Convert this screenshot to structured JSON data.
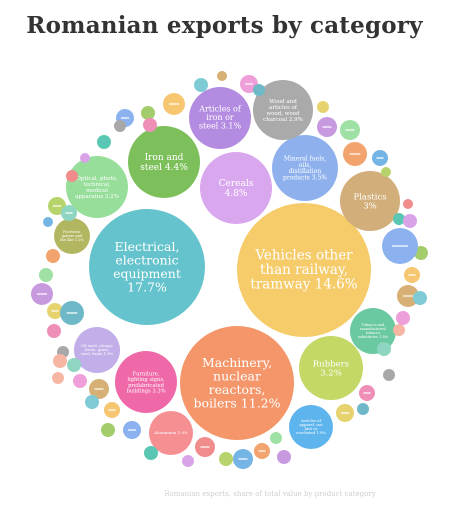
{
  "chart_data": {
    "type": "bubble",
    "title": "Romanian exports by category",
    "series": [
      {
        "name": "Electrical, electronic equipment",
        "value": 17.7,
        "label": "Electrical, electronic equipment 17.7%",
        "color": "#64c3cc"
      },
      {
        "name": "Vehicles other than railway, tramway",
        "value": 14.6,
        "label": "Vehicles other than railway, tramway 14.6%",
        "color": "#f6cc6a"
      },
      {
        "name": "Machinery, nuclear reactors, boilers",
        "value": 11.2,
        "label": "Machinery, nuclear reactors, boilers 11.2%",
        "color": "#f4966a"
      },
      {
        "name": "Cereals",
        "value": 4.8,
        "label": "Cereals 4.8%",
        "color": "#d9a7ee"
      },
      {
        "name": "Iron and steel",
        "value": 4.4,
        "label": "Iron and steel 4.4%",
        "color": "#7dc05b"
      },
      {
        "name": "Mineral fuels, oils, distillation products",
        "value": 3.5,
        "label": "Mineral fuels, oils, distillation products 3.5%",
        "color": "#8eb1ee"
      },
      {
        "name": "Optical, photo, technical, medical apparatus",
        "value": 3.2,
        "label": "Optical, photo, technical, medical apparatus 3.2%",
        "color": "#96de9a"
      },
      {
        "name": "Rubbers",
        "value": 3.2,
        "label": "Rubbers 3.2%",
        "color": "#c3d865"
      },
      {
        "name": "Articles of iron or steel",
        "value": 3.1,
        "label": "Articles of iron or steel 3.1%",
        "color": "#b38be0"
      },
      {
        "name": "Plastics",
        "value": 3.0,
        "label": "Plastics 3%",
        "color": "#d2ae7a"
      },
      {
        "name": "Wood and articles of wood, wood charcoal",
        "value": 2.9,
        "label": "Wood and articles of wood, wood charcoal 2.9%",
        "color": "#aaaaaa"
      },
      {
        "name": "Furniture, lighting signs, prefabricated buildings",
        "value": 3.3,
        "label": "Furniture, lighting signs, prefabricated buildings 3.3%",
        "color": "#ef69a8"
      },
      {
        "name": "Articles of apparel, not knit or crocheted",
        "value": 1.9,
        "label": "Articles of apparel, not knit or crocheted 1.9%",
        "color": "#5eb4ec"
      },
      {
        "name": "Tobacco and manufactured tobacco substitutes",
        "value": 1.8,
        "label": "Tobacco and manufactured tobacco substitutes 1.8%",
        "color": "#6ac9a0"
      },
      {
        "name": "Aluminium",
        "value": 1.9,
        "label": "Aluminium 1.9%",
        "color": "#f58f92"
      },
      {
        "name": "Oil seed, oleagic fruits, grain, seed, fruits",
        "value": 1.8,
        "label": "Oil seed, oleagic fruits, grain, seed, fruits 1.8%",
        "color": "#c2aee8"
      },
      {
        "name": "Footwear, gaiters and the like",
        "value": 1.2,
        "label": "Footwear, gaiters and the like 1.2%",
        "color": "#b3b660"
      }
    ],
    "small_series": [
      {
        "color": "#ee9ed8"
      },
      {
        "color": "#d6b074"
      },
      {
        "color": "#7fcbd5"
      },
      {
        "color": "#f6c671"
      },
      {
        "color": "#a3cc6b"
      },
      {
        "color": "#8bb2ee"
      },
      {
        "color": "#59c7b3"
      },
      {
        "color": "#d9a3e8"
      },
      {
        "color": "#f08c8c"
      },
      {
        "color": "#b7d46c"
      },
      {
        "color": "#75b5e6"
      },
      {
        "color": "#f2a36e"
      },
      {
        "color": "#9fe0a4"
      },
      {
        "color": "#c79ae0"
      },
      {
        "color": "#e7d36e"
      },
      {
        "color": "#6fb8c8"
      },
      {
        "color": "#ef8fb7"
      },
      {
        "color": "#a8a8a8"
      },
      {
        "color": "#8ed6c1"
      },
      {
        "color": "#f7b6a4"
      }
    ],
    "footer_note": "Romanian exports, share of total value by product category"
  }
}
